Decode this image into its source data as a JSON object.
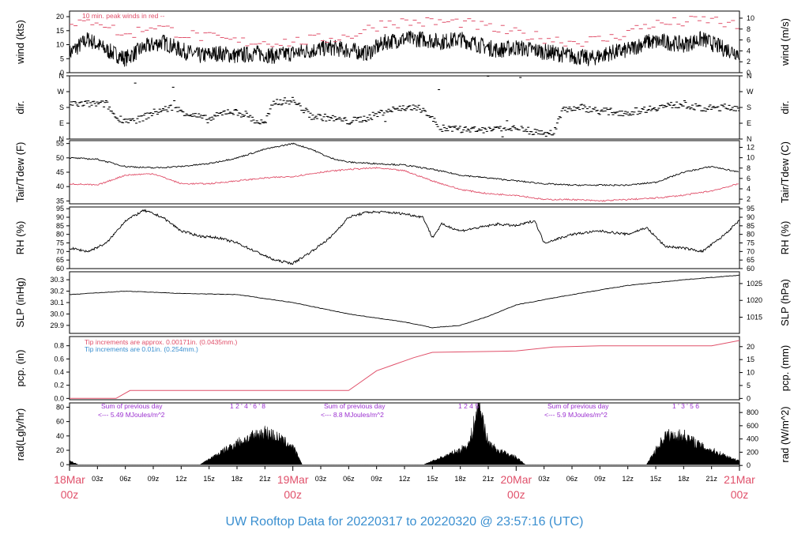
{
  "footer": {
    "title": "UW Rooftop Data for 20220317  to  20220320 @ 23:57:16  (UTC)"
  },
  "time_axis": {
    "hour_ticks": [
      "03z",
      "06z",
      "09z",
      "12z",
      "15z",
      "18z",
      "21z",
      "03z",
      "06z",
      "09z",
      "12z",
      "15z",
      "18z",
      "21z",
      "03z",
      "06z",
      "09z",
      "12z",
      "15z",
      "18z",
      "21z"
    ],
    "date_labels": [
      {
        "line1": "18Mar",
        "line2": "00z"
      },
      {
        "line1": "19Mar",
        "line2": "00z"
      },
      {
        "line1": "20Mar",
        "line2": "00z"
      },
      {
        "line1": "21Mar",
        "line2": "00z"
      }
    ]
  },
  "colors": {
    "primary": "#000000",
    "accent": "#e0506a",
    "blue": "#3a8fd0",
    "purple": "#9b30d0"
  },
  "panels": {
    "wind": {
      "ylabel_left": "wind (kts)",
      "ylabel_right": "wind (m/s)",
      "ticks_left": [
        "0",
        "5",
        "10",
        "15",
        "20"
      ],
      "ticks_right": [
        "0",
        "2",
        "4",
        "6",
        "8",
        "10"
      ],
      "note": "10 min. peak winds in red --"
    },
    "dir": {
      "ylabel_left": "dir.",
      "ylabel_right": "dir.",
      "ticks_left": [
        "N",
        "E",
        "S",
        "W",
        "N"
      ],
      "ticks_right": [
        "N",
        "E",
        "S",
        "W",
        "N"
      ]
    },
    "temp": {
      "ylabel_left": "Tair/Tdew (F)",
      "ylabel_right": "Tair/Tdew (C)",
      "ticks_left": [
        "35",
        "40",
        "45",
        "50",
        "55"
      ],
      "ticks_right": [
        "2",
        "4",
        "6",
        "8",
        "10",
        "12"
      ]
    },
    "rh": {
      "ylabel_left": "RH (%)",
      "ylabel_right": "RH (%)",
      "ticks_left": [
        "60",
        "65",
        "70",
        "75",
        "80",
        "85",
        "90",
        "95"
      ],
      "ticks_right": [
        "60",
        "65",
        "70",
        "75",
        "80",
        "85",
        "90",
        "95"
      ]
    },
    "slp": {
      "ylabel_left": "SLP (inHg)",
      "ylabel_right": "SLP (hPa)",
      "ticks_left": [
        "29.9",
        "30.0",
        "30.1",
        "30.2",
        "30.3"
      ],
      "ticks_right": [
        "1015",
        "1020",
        "1025"
      ]
    },
    "pcp": {
      "ylabel_left": "pcp. (in)",
      "ylabel_right": "pcp. (mm)",
      "ticks_left": [
        "0.0",
        "0.2",
        "0.4",
        "0.6",
        "0.8"
      ],
      "ticks_right": [
        "0",
        "5",
        "10",
        "15",
        "20"
      ],
      "note1": "Tip increments are approx. 0.00171in. (0.0435mm.)",
      "note2": "Tip increments are 0.01in. (0.254mm.)"
    },
    "rad": {
      "ylabel_left": "rad(Lgly/hr)",
      "ylabel_right": "rad (W/m^2)",
      "ticks_left": [
        "0",
        "20",
        "40",
        "60",
        "80"
      ],
      "ticks_right": [
        "0",
        "200",
        "400",
        "600",
        "800"
      ],
      "sums": [
        {
          "line1": "Sum of previous day",
          "line2": "<--- 5.49 MJoules/m^2"
        },
        {
          "line1": "Sum of previous day",
          "line2": "<--- 8.8 MJoules/m^2"
        },
        {
          "line1": "Sum of previous day",
          "line2": "<--- 5.9 MJoules/m^2"
        }
      ],
      "day_digits": [
        {
          "day": 1,
          "text": "1  2  '  4 ' 6 '  8"
        },
        {
          "day": 2,
          "text": "1    2    4     5"
        },
        {
          "day": 3,
          "text": "1 ' 3  ' 5  6"
        }
      ]
    }
  },
  "chart_data": {
    "type": "line",
    "x_unit": "hours since 2022-03-18 00z",
    "x_range": [
      0,
      72
    ],
    "series": [
      {
        "panel": "wind",
        "points": [
          [
            0,
            7
          ],
          [
            2,
            12
          ],
          [
            4,
            8
          ],
          [
            6,
            5
          ],
          [
            8,
            9
          ],
          [
            10,
            11
          ],
          [
            12,
            8
          ],
          [
            14,
            6
          ],
          [
            16,
            7
          ],
          [
            18,
            6
          ],
          [
            20,
            7
          ],
          [
            22,
            6
          ],
          [
            24,
            7
          ],
          [
            26,
            8
          ],
          [
            28,
            9
          ],
          [
            30,
            8
          ],
          [
            32,
            7
          ],
          [
            34,
            11
          ],
          [
            36,
            12
          ],
          [
            38,
            12
          ],
          [
            40,
            11
          ],
          [
            42,
            12
          ],
          [
            44,
            10
          ],
          [
            46,
            8
          ],
          [
            48,
            9
          ],
          [
            50,
            8
          ],
          [
            52,
            7
          ],
          [
            54,
            6
          ],
          [
            56,
            5
          ],
          [
            58,
            7
          ],
          [
            60,
            8
          ],
          [
            62,
            11
          ],
          [
            64,
            11
          ],
          [
            66,
            10
          ],
          [
            68,
            12
          ],
          [
            70,
            9
          ],
          [
            72,
            7
          ]
        ]
      },
      {
        "panel": "wind_peak",
        "points": [
          [
            0,
            16
          ],
          [
            3,
            19
          ],
          [
            6,
            13
          ],
          [
            9,
            17
          ],
          [
            12,
            14
          ],
          [
            18,
            11
          ],
          [
            24,
            11
          ],
          [
            30,
            13
          ],
          [
            34,
            18
          ],
          [
            38,
            18
          ],
          [
            42,
            18
          ],
          [
            48,
            14
          ],
          [
            54,
            11
          ],
          [
            58,
            12
          ],
          [
            62,
            17
          ],
          [
            66,
            18
          ],
          [
            69,
            19
          ],
          [
            72,
            16
          ]
        ]
      },
      {
        "panel": "dir_deg",
        "points": [
          [
            0,
            200
          ],
          [
            4,
            200
          ],
          [
            5,
            120
          ],
          [
            7,
            100
          ],
          [
            9,
            150
          ],
          [
            11,
            180
          ],
          [
            13,
            140
          ],
          [
            15,
            110
          ],
          [
            17,
            160
          ],
          [
            19,
            140
          ],
          [
            20,
            100
          ],
          [
            21,
            90
          ],
          [
            22,
            210
          ],
          [
            24,
            220
          ],
          [
            26,
            130
          ],
          [
            28,
            120
          ],
          [
            30,
            100
          ],
          [
            32,
            120
          ],
          [
            34,
            160
          ],
          [
            36,
            180
          ],
          [
            38,
            170
          ],
          [
            40,
            60
          ],
          [
            44,
            50
          ],
          [
            48,
            60
          ],
          [
            50,
            40
          ],
          [
            52,
            30
          ],
          [
            53,
            170
          ],
          [
            55,
            180
          ],
          [
            57,
            160
          ],
          [
            60,
            150
          ],
          [
            63,
            180
          ],
          [
            66,
            200
          ],
          [
            68,
            170
          ],
          [
            70,
            180
          ],
          [
            72,
            180
          ]
        ]
      },
      {
        "panel": "temp_air_F",
        "points": [
          [
            0,
            50
          ],
          [
            3,
            49.5
          ],
          [
            6,
            47
          ],
          [
            9,
            46.5
          ],
          [
            12,
            47
          ],
          [
            15,
            48
          ],
          [
            18,
            50
          ],
          [
            21,
            53
          ],
          [
            24,
            55
          ],
          [
            26,
            53
          ],
          [
            28,
            50
          ],
          [
            30,
            48.5
          ],
          [
            33,
            48
          ],
          [
            36,
            47.5
          ],
          [
            39,
            46
          ],
          [
            42,
            44
          ],
          [
            45,
            43
          ],
          [
            48,
            42
          ],
          [
            51,
            41
          ],
          [
            54,
            40.5
          ],
          [
            57,
            40.5
          ],
          [
            60,
            40.5
          ],
          [
            63,
            41.5
          ],
          [
            66,
            45
          ],
          [
            69,
            47
          ],
          [
            72,
            45
          ]
        ]
      },
      {
        "panel": "temp_dew_F",
        "points": [
          [
            0,
            41
          ],
          [
            3,
            40.5
          ],
          [
            6,
            44
          ],
          [
            9,
            44.5
          ],
          [
            12,
            41
          ],
          [
            15,
            41
          ],
          [
            18,
            42
          ],
          [
            21,
            43
          ],
          [
            24,
            43.5
          ],
          [
            27,
            45
          ],
          [
            30,
            46
          ],
          [
            33,
            46.5
          ],
          [
            36,
            45.5
          ],
          [
            39,
            42
          ],
          [
            42,
            39
          ],
          [
            45,
            37.5
          ],
          [
            48,
            37
          ],
          [
            51,
            35.5
          ],
          [
            54,
            35.5
          ],
          [
            57,
            35
          ],
          [
            60,
            35.5
          ],
          [
            63,
            36
          ],
          [
            66,
            37
          ],
          [
            69,
            38.5
          ],
          [
            72,
            41
          ]
        ]
      },
      {
        "panel": "rh_pct",
        "points": [
          [
            0,
            72
          ],
          [
            2,
            70
          ],
          [
            4,
            75
          ],
          [
            6,
            88
          ],
          [
            8,
            94
          ],
          [
            10,
            90
          ],
          [
            12,
            82
          ],
          [
            14,
            79
          ],
          [
            16,
            78
          ],
          [
            18,
            75
          ],
          [
            20,
            70
          ],
          [
            22,
            65
          ],
          [
            24,
            63
          ],
          [
            26,
            70
          ],
          [
            28,
            78
          ],
          [
            30,
            90
          ],
          [
            32,
            93
          ],
          [
            34,
            93
          ],
          [
            36,
            92
          ],
          [
            38,
            90
          ],
          [
            39,
            78
          ],
          [
            40,
            86
          ],
          [
            42,
            82
          ],
          [
            44,
            84
          ],
          [
            46,
            86
          ],
          [
            48,
            85
          ],
          [
            50,
            88
          ],
          [
            51,
            75
          ],
          [
            54,
            80
          ],
          [
            57,
            82
          ],
          [
            60,
            80
          ],
          [
            62,
            84
          ],
          [
            64,
            73
          ],
          [
            66,
            72
          ],
          [
            68,
            70
          ],
          [
            70,
            78
          ],
          [
            72,
            88
          ]
        ]
      },
      {
        "panel": "slp_inHg",
        "points": [
          [
            0,
            30.17
          ],
          [
            6,
            30.2
          ],
          [
            12,
            30.18
          ],
          [
            18,
            30.17
          ],
          [
            24,
            30.1
          ],
          [
            30,
            30.0
          ],
          [
            36,
            29.93
          ],
          [
            39,
            29.88
          ],
          [
            42,
            29.9
          ],
          [
            45,
            29.98
          ],
          [
            48,
            30.08
          ],
          [
            54,
            30.17
          ],
          [
            60,
            30.25
          ],
          [
            66,
            30.3
          ],
          [
            72,
            30.34
          ]
        ]
      },
      {
        "panel": "pcp_in",
        "points": [
          [
            0,
            0
          ],
          [
            5,
            0
          ],
          [
            6.5,
            0.12
          ],
          [
            24,
            0.12
          ],
          [
            30,
            0.12
          ],
          [
            31,
            0.22
          ],
          [
            33,
            0.42
          ],
          [
            35,
            0.52
          ],
          [
            37,
            0.62
          ],
          [
            39,
            0.7
          ],
          [
            48,
            0.72
          ],
          [
            52,
            0.78
          ],
          [
            57,
            0.8
          ],
          [
            69,
            0.8
          ],
          [
            72,
            0.88
          ]
        ]
      },
      {
        "panel": "rad_lgly",
        "points": [
          [
            0,
            5
          ],
          [
            1,
            0
          ],
          [
            14,
            0
          ],
          [
            16,
            15
          ],
          [
            18,
            30
          ],
          [
            20,
            40
          ],
          [
            21,
            45
          ],
          [
            22,
            40
          ],
          [
            24,
            25
          ],
          [
            25,
            0
          ],
          [
            38,
            0
          ],
          [
            40,
            10
          ],
          [
            42,
            20
          ],
          [
            43,
            30
          ],
          [
            44,
            85
          ],
          [
            45,
            30
          ],
          [
            46,
            20
          ],
          [
            48,
            10
          ],
          [
            49,
            0
          ],
          [
            62,
            0
          ],
          [
            63,
            20
          ],
          [
            64,
            40
          ],
          [
            66,
            40
          ],
          [
            68,
            25
          ],
          [
            70,
            15
          ],
          [
            72,
            5
          ]
        ]
      }
    ]
  }
}
